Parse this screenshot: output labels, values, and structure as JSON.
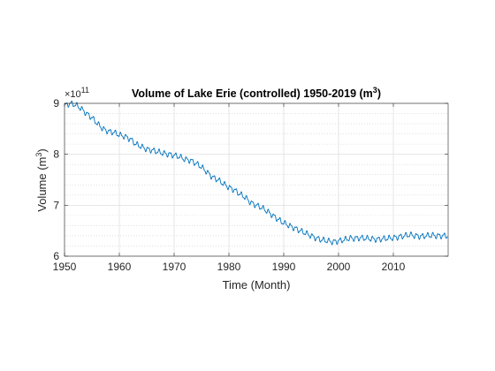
{
  "chart_data": {
    "type": "line",
    "title_main": "Volume of Lake Erie (controlled) 1950-2019 (m",
    "title_sup": "3",
    "title_close": ")",
    "xlabel": "Time (Month)",
    "ylabel_main": "Volume (m",
    "ylabel_sup": "3",
    "ylabel_close": ")",
    "y_multiplier_base": "×10",
    "y_multiplier_exp": "11",
    "xlim": [
      1950,
      2020
    ],
    "ylim": [
      6,
      9
    ],
    "x_ticks": [
      1950,
      1960,
      1970,
      1980,
      1990,
      2000,
      2010
    ],
    "x_tick_labels": [
      "1950",
      "1960",
      "1970",
      "1980",
      "1990",
      "2000",
      "2010"
    ],
    "y_ticks": [
      6,
      7,
      8,
      9
    ],
    "y_tick_labels": [
      "6",
      "7",
      "8",
      "9"
    ],
    "grid": "on",
    "minor_grid": "on",
    "line_color": "#0072BD",
    "series": [
      {
        "x": [
          1950,
          1951,
          1952,
          1953,
          1954,
          1955,
          1956,
          1957,
          1958,
          1959,
          1960,
          1961,
          1962,
          1963,
          1964,
          1965,
          1966,
          1967,
          1968,
          1969,
          1970,
          1971,
          1972,
          1973,
          1974,
          1975,
          1976,
          1977,
          1978,
          1979,
          1980,
          1981,
          1982,
          1983,
          1984,
          1985,
          1986,
          1987,
          1988,
          1989,
          1990,
          1991,
          1992,
          1993,
          1994,
          1995,
          1996,
          1997,
          1998,
          1999,
          2000,
          2001,
          2002,
          2003,
          2004,
          2005,
          2006,
          2007,
          2008,
          2009,
          2010,
          2011,
          2012,
          2013,
          2014,
          2015,
          2016,
          2017,
          2018,
          2019
        ],
        "values": [
          8.95,
          9.0,
          8.97,
          8.9,
          8.8,
          8.72,
          8.6,
          8.5,
          8.45,
          8.43,
          8.38,
          8.35,
          8.3,
          8.2,
          8.15,
          8.1,
          8.08,
          8.05,
          8.02,
          8.0,
          7.98,
          7.95,
          7.9,
          7.88,
          7.82,
          7.75,
          7.65,
          7.55,
          7.5,
          7.42,
          7.35,
          7.3,
          7.22,
          7.15,
          7.05,
          7.0,
          6.95,
          6.88,
          6.8,
          6.72,
          6.65,
          6.6,
          6.55,
          6.5,
          6.45,
          6.4,
          6.35,
          6.32,
          6.3,
          6.28,
          6.3,
          6.32,
          6.35,
          6.35,
          6.36,
          6.35,
          6.34,
          6.33,
          6.34,
          6.35,
          6.36,
          6.38,
          6.4,
          6.42,
          6.4,
          6.39,
          6.4,
          6.41,
          6.4,
          6.4
        ]
      }
    ]
  }
}
